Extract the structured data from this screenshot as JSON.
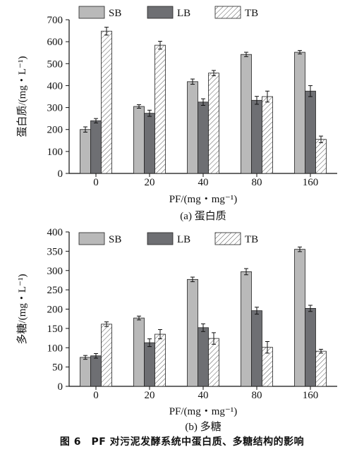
{
  "figure_caption": "图 6　PF 对污泥发酵系统中蛋白质、多糖结构的影响",
  "chart_data": [
    {
      "type": "bar",
      "subplot_label": "(a) 蛋白质",
      "xlabel": "PF/(mg・mg⁻¹)",
      "ylabel": "蛋白质/(mg・L⁻¹)",
      "categories": [
        "0",
        "20",
        "40",
        "80",
        "160"
      ],
      "ylim": [
        0,
        700
      ],
      "yticks": [
        0,
        100,
        200,
        300,
        400,
        500,
        600,
        700
      ],
      "legend_position": "top",
      "series": [
        {
          "name": "SB",
          "color": "#b9b9b9",
          "pattern": "solid",
          "values": [
            200,
            305,
            418,
            542,
            552
          ],
          "errors": [
            12,
            8,
            12,
            10,
            8
          ]
        },
        {
          "name": "LB",
          "color": "#6e6f73",
          "pattern": "solid",
          "values": [
            240,
            274,
            325,
            333,
            375
          ],
          "errors": [
            10,
            14,
            15,
            18,
            25
          ]
        },
        {
          "name": "TB",
          "color": "#ffffff",
          "pattern": "hatch",
          "values": [
            648,
            584,
            457,
            350,
            155
          ],
          "errors": [
            18,
            18,
            12,
            25,
            15
          ]
        }
      ]
    },
    {
      "type": "bar",
      "subplot_label": "(b) 多糖",
      "xlabel": "PF/(mg・mg⁻¹)",
      "ylabel": "多糖/(mg・L⁻¹)",
      "categories": [
        "0",
        "20",
        "40",
        "80",
        "160"
      ],
      "ylim": [
        0,
        400
      ],
      "yticks": [
        0,
        50,
        100,
        150,
        200,
        250,
        300,
        350,
        400
      ],
      "legend_position": "top",
      "series": [
        {
          "name": "SB",
          "color": "#b9b9b9",
          "pattern": "solid",
          "values": [
            75,
            177,
            277,
            297,
            355
          ],
          "errors": [
            5,
            5,
            6,
            8,
            6
          ]
        },
        {
          "name": "LB",
          "color": "#6e6f73",
          "pattern": "solid",
          "values": [
            79,
            113,
            152,
            196,
            202
          ],
          "errors": [
            6,
            10,
            10,
            9,
            8
          ]
        },
        {
          "name": "TB",
          "color": "#ffffff",
          "pattern": "hatch",
          "values": [
            161,
            135,
            124,
            101,
            91
          ],
          "errors": [
            6,
            12,
            15,
            15,
            5
          ]
        }
      ]
    }
  ]
}
